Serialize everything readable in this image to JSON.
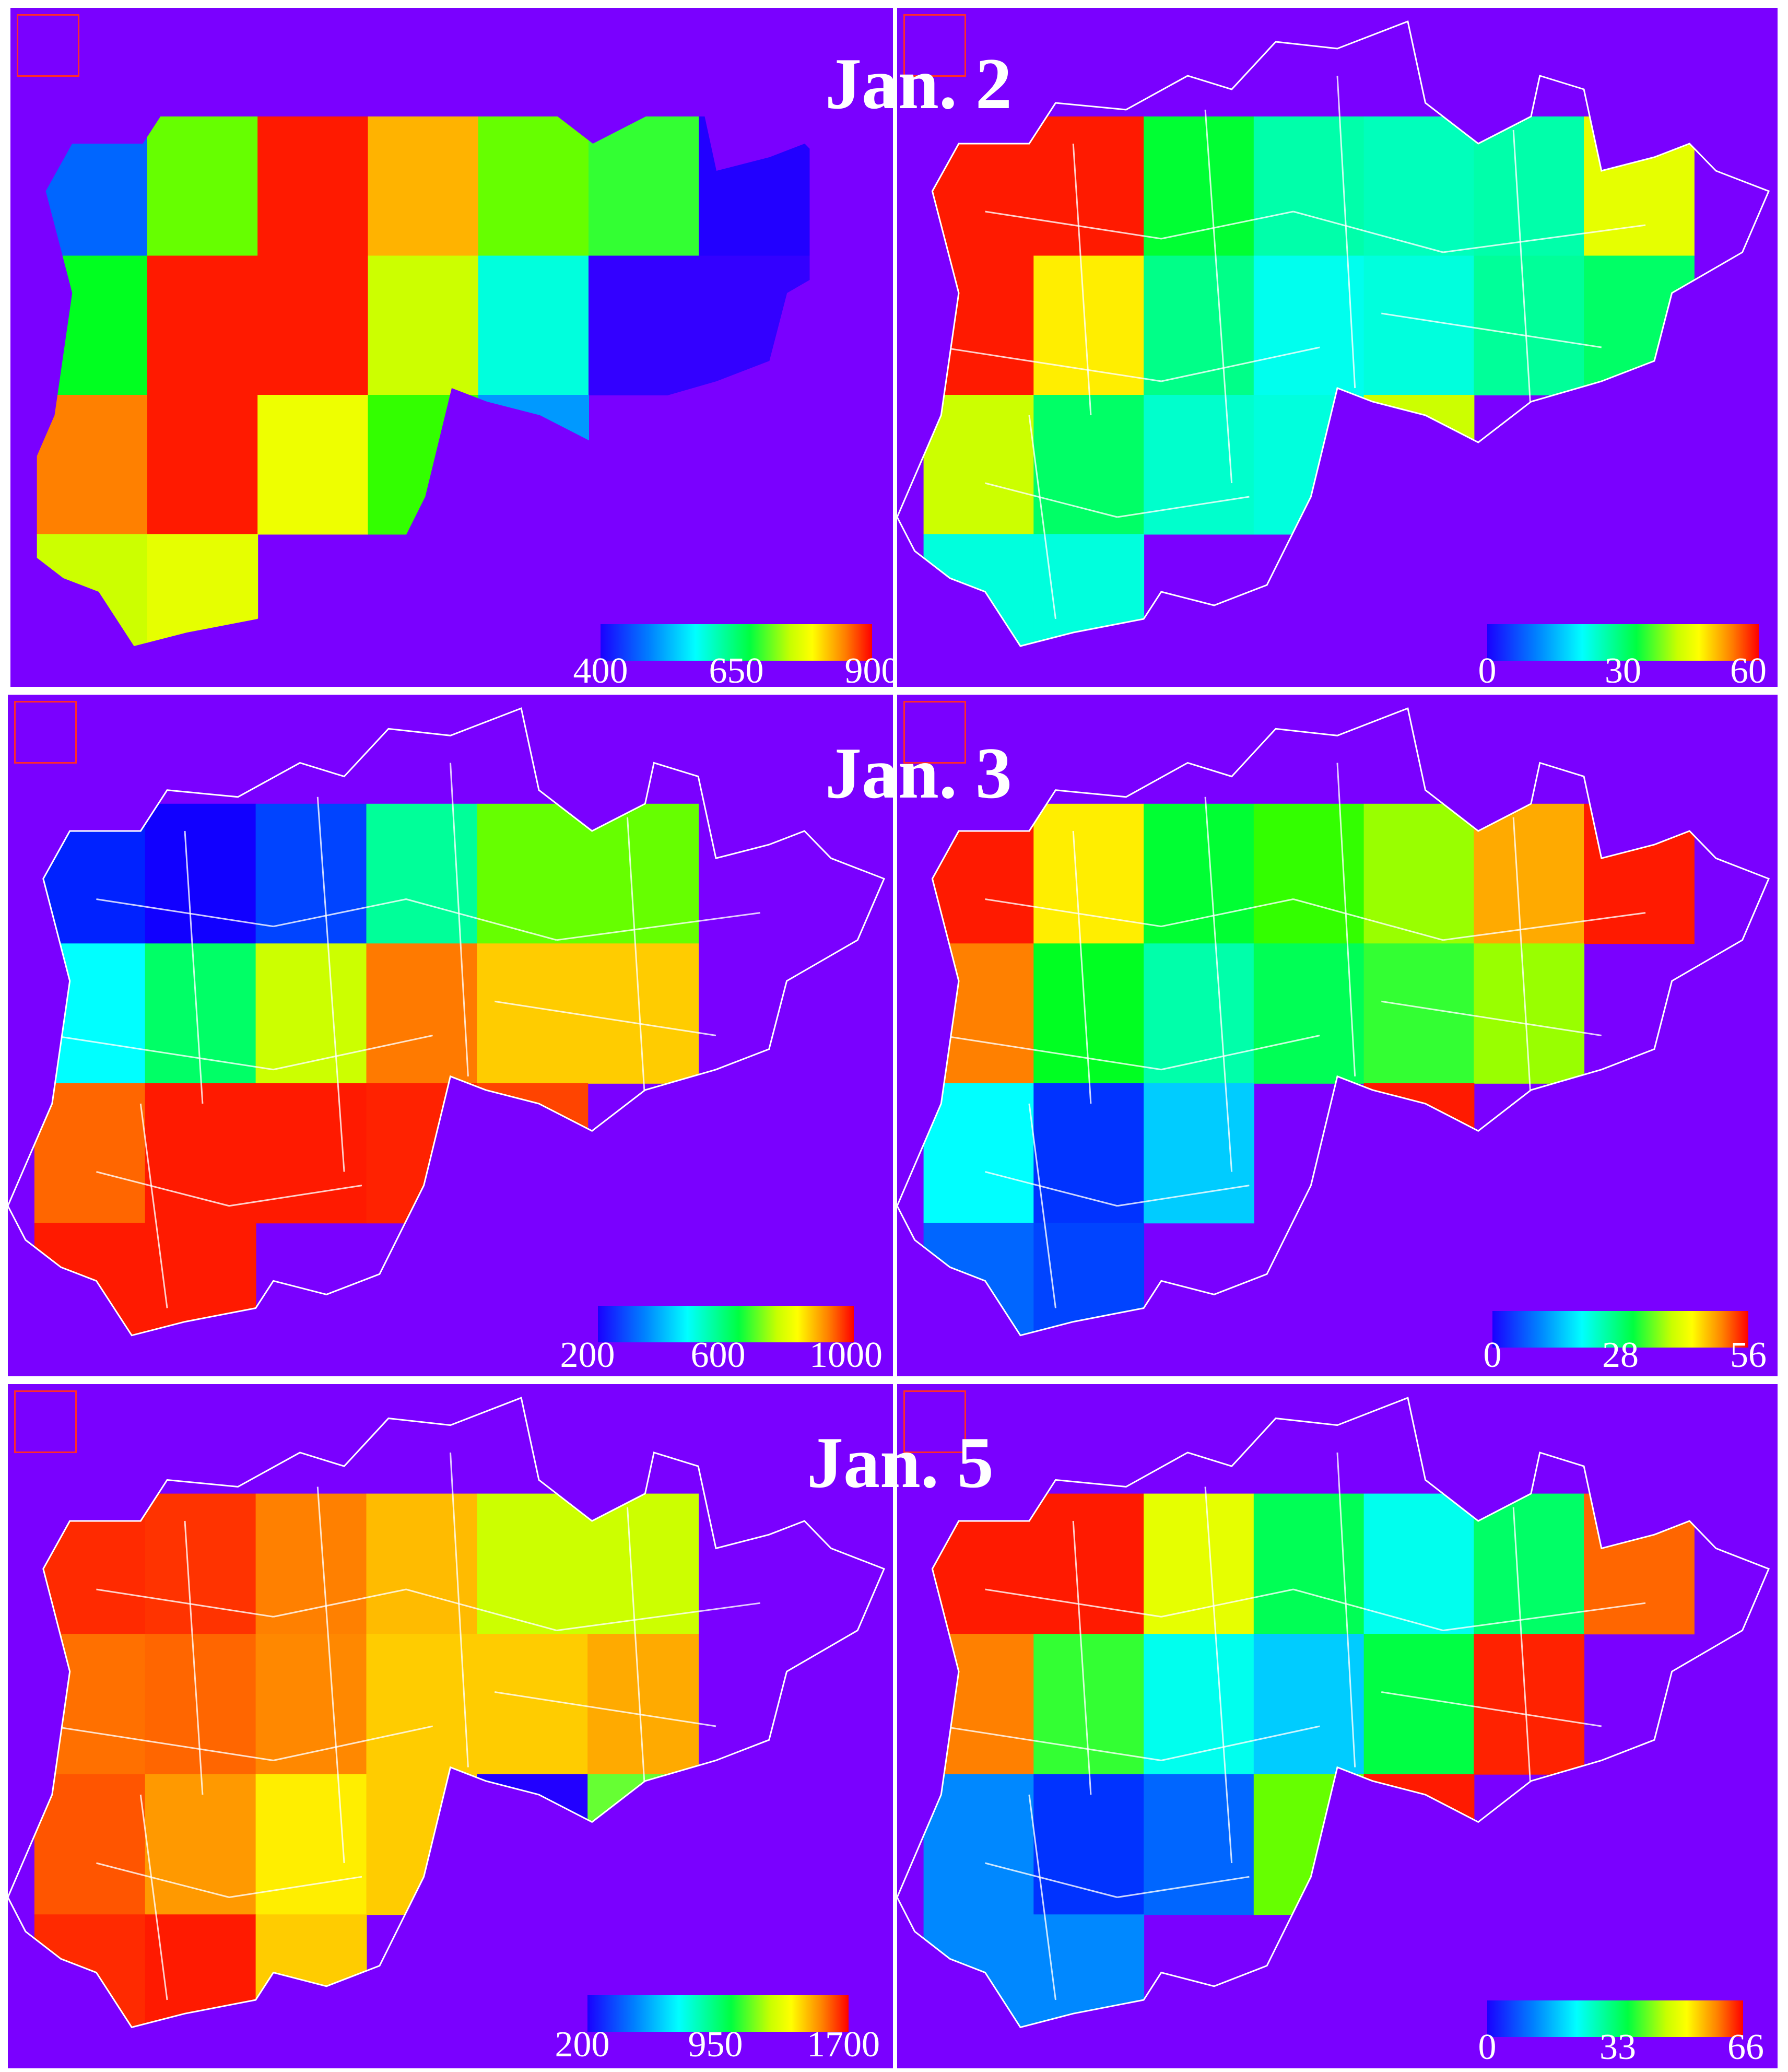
{
  "dates": [
    "Jan. 2",
    "Jan. 3",
    "Jan. 5"
  ],
  "colors": {
    "background": "#7a00ff",
    "boundary": "#ffffff",
    "marker": "#ff2a2a"
  },
  "panels": [
    {
      "id": "jan2-left",
      "ticks": [
        "400",
        "650",
        "900"
      ],
      "cells": [
        [
          "#0066ff",
          "#66ff00",
          "#ff1a00",
          "#ffb300",
          "#66ff00",
          "#33ff33",
          "#2200ff"
        ],
        [
          "#00ff20",
          "#ff1a00",
          "#ff1a00",
          "#ccff00",
          "#00ffdd",
          "#3300ff",
          "#3300ff"
        ],
        [
          "#ff8000",
          "#ff1a00",
          "#eeff00",
          "#33ff00",
          "#0099ff",
          "#7a00ff",
          "#7a00ff"
        ],
        [
          "#ccff00",
          "#e6ff00",
          "#7a00ff",
          "#7a00ff",
          "#7a00ff",
          "#7a00ff",
          "#7a00ff"
        ]
      ]
    },
    {
      "id": "jan2-right",
      "ticks": [
        "0",
        "30",
        "60"
      ],
      "cells": [
        [
          "#ff1a00",
          "#ff1a00",
          "#00ff33",
          "#00ffaa",
          "#00ffbb",
          "#00ffaa",
          "#e6ff00"
        ],
        [
          "#ff1a00",
          "#ffee00",
          "#00ff88",
          "#00ffee",
          "#00ffdd",
          "#00ff99",
          "#00ff66"
        ],
        [
          "#ccff00",
          "#00ff66",
          "#00ffcc",
          "#00ffdd",
          "#ccff00",
          "#7a00ff",
          "#7a00ff"
        ],
        [
          "#00ffdd",
          "#00ffdd",
          "#7a00ff",
          "#7a00ff",
          "#7a00ff",
          "#7a00ff",
          "#7a00ff"
        ]
      ]
    },
    {
      "id": "jan3-left",
      "ticks": [
        "200",
        "600",
        "1000"
      ],
      "cells": [
        [
          "#0022ff",
          "#1100ff",
          "#0044ff",
          "#00ff99",
          "#66ff00",
          "#66ff00",
          "#7a00ff"
        ],
        [
          "#00ffff",
          "#00ff66",
          "#ccff00",
          "#ff7a00",
          "#ffcc00",
          "#ffcc00",
          "#7a00ff"
        ],
        [
          "#ff6600",
          "#ff1a00",
          "#ff1a00",
          "#ff2200",
          "#ff4400",
          "#7a00ff",
          "#7a00ff"
        ],
        [
          "#ff1a00",
          "#ff1a00",
          "#7a00ff",
          "#7a00ff",
          "#7a00ff",
          "#7a00ff",
          "#7a00ff"
        ]
      ]
    },
    {
      "id": "jan3-right",
      "ticks": [
        "0",
        "28",
        "56"
      ],
      "cells": [
        [
          "#ff1a00",
          "#ffee00",
          "#00ff33",
          "#33ff00",
          "#99ff00",
          "#ffaa00",
          "#ff1a00"
        ],
        [
          "#ff8000",
          "#00ff22",
          "#00ffaa",
          "#00ff55",
          "#33ff33",
          "#99ff00",
          "#7a00ff"
        ],
        [
          "#00ffff",
          "#0033ff",
          "#00ccff",
          "#7a00ff",
          "#ff1a00",
          "#7a00ff",
          "#7a00ff"
        ],
        [
          "#0066ff",
          "#0044ff",
          "#7a00ff",
          "#7a00ff",
          "#7a00ff",
          "#7a00ff",
          "#7a00ff"
        ]
      ]
    },
    {
      "id": "jan5-left",
      "ticks": [
        "200",
        "950",
        "1700"
      ],
      "cells": [
        [
          "#ff2a00",
          "#ff3300",
          "#ff8000",
          "#ffbb00",
          "#ccff00",
          "#ccff00",
          "#7a00ff"
        ],
        [
          "#ff7000",
          "#ff6600",
          "#ff8800",
          "#ffcc00",
          "#ffcc00",
          "#ffaa00",
          "#7a00ff"
        ],
        [
          "#ff5500",
          "#ff9900",
          "#ffee00",
          "#ffcc00",
          "#2200ff",
          "#66ff33",
          "#7a00ff"
        ],
        [
          "#ff2a00",
          "#ff1a00",
          "#ffcc00",
          "#7a00ff",
          "#7a00ff",
          "#7a00ff",
          "#7a00ff"
        ]
      ]
    },
    {
      "id": "jan5-right",
      "ticks": [
        "0",
        "33",
        "66"
      ],
      "cells": [
        [
          "#ff1a00",
          "#ff1a00",
          "#e6ff00",
          "#00ff55",
          "#00ffee",
          "#00ff66",
          "#ff6600"
        ],
        [
          "#ff8000",
          "#33ff33",
          "#00ffee",
          "#00ccff",
          "#00ff44",
          "#ff2200",
          "#7a00ff"
        ],
        [
          "#0088ff",
          "#0033ff",
          "#0066ff",
          "#66ff00",
          "#ff1a00",
          "#7a00ff",
          "#7a00ff"
        ],
        [
          "#0088ff",
          "#0088ff",
          "#7a00ff",
          "#7a00ff",
          "#7a00ff",
          "#7a00ff",
          "#7a00ff"
        ]
      ]
    }
  ]
}
